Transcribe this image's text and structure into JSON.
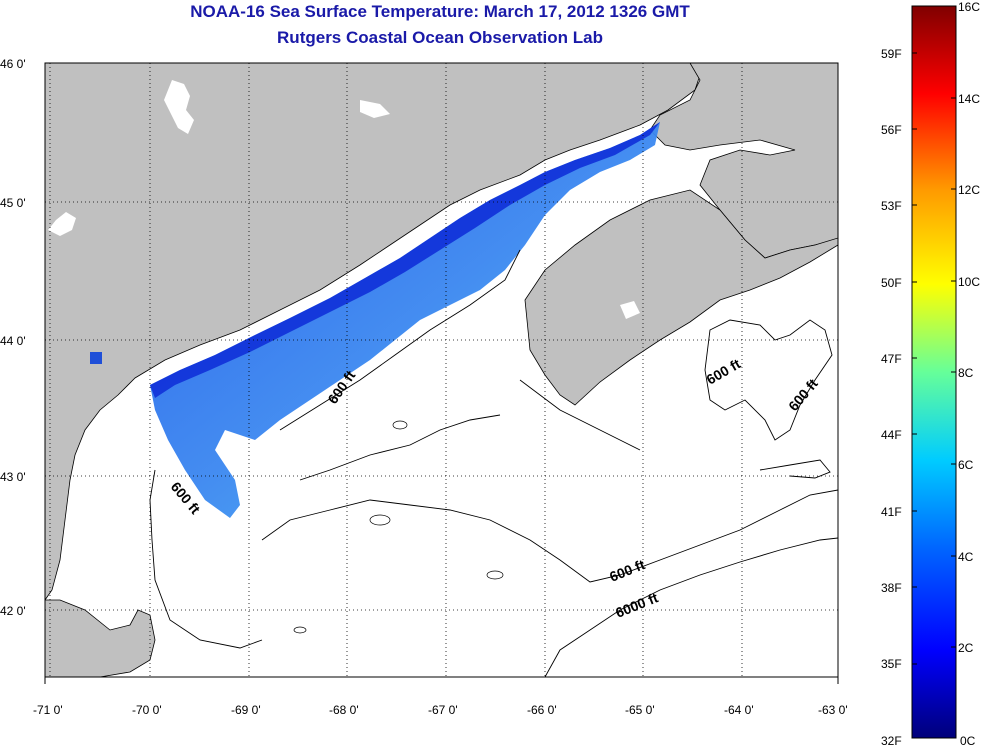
{
  "title": "NOAA-16 Sea Surface Temperature:  March 17, 2012 1326 GMT",
  "subtitle": "Rutgers Coastal Ocean Observation Lab",
  "colors": {
    "land": "#c0c0c0",
    "water": "#ffffff",
    "title": "#1a1aa8"
  },
  "lat_labels": [
    "46 0'",
    "45 0'",
    "44 0'",
    "43 0'",
    "42 0'"
  ],
  "lon_labels": [
    "-71 0'",
    "-70 0'",
    "-69 0'",
    "-68 0'",
    "-67 0'",
    "-66 0'",
    "-65 0'",
    "-64 0'",
    "-63 0'"
  ],
  "contour_labels": [
    "600 ft",
    "600 ft",
    "600 ft",
    "600 ft",
    "600 ft",
    "6000 ft"
  ],
  "colorbar": {
    "celsius": [
      "0C",
      "2C",
      "4C",
      "6C",
      "8C",
      "10C",
      "12C",
      "14C",
      "16C"
    ],
    "fahrenheit": [
      "32F",
      "35F",
      "38F",
      "41F",
      "44F",
      "47F",
      "50F",
      "53F",
      "56F",
      "59F"
    ]
  }
}
